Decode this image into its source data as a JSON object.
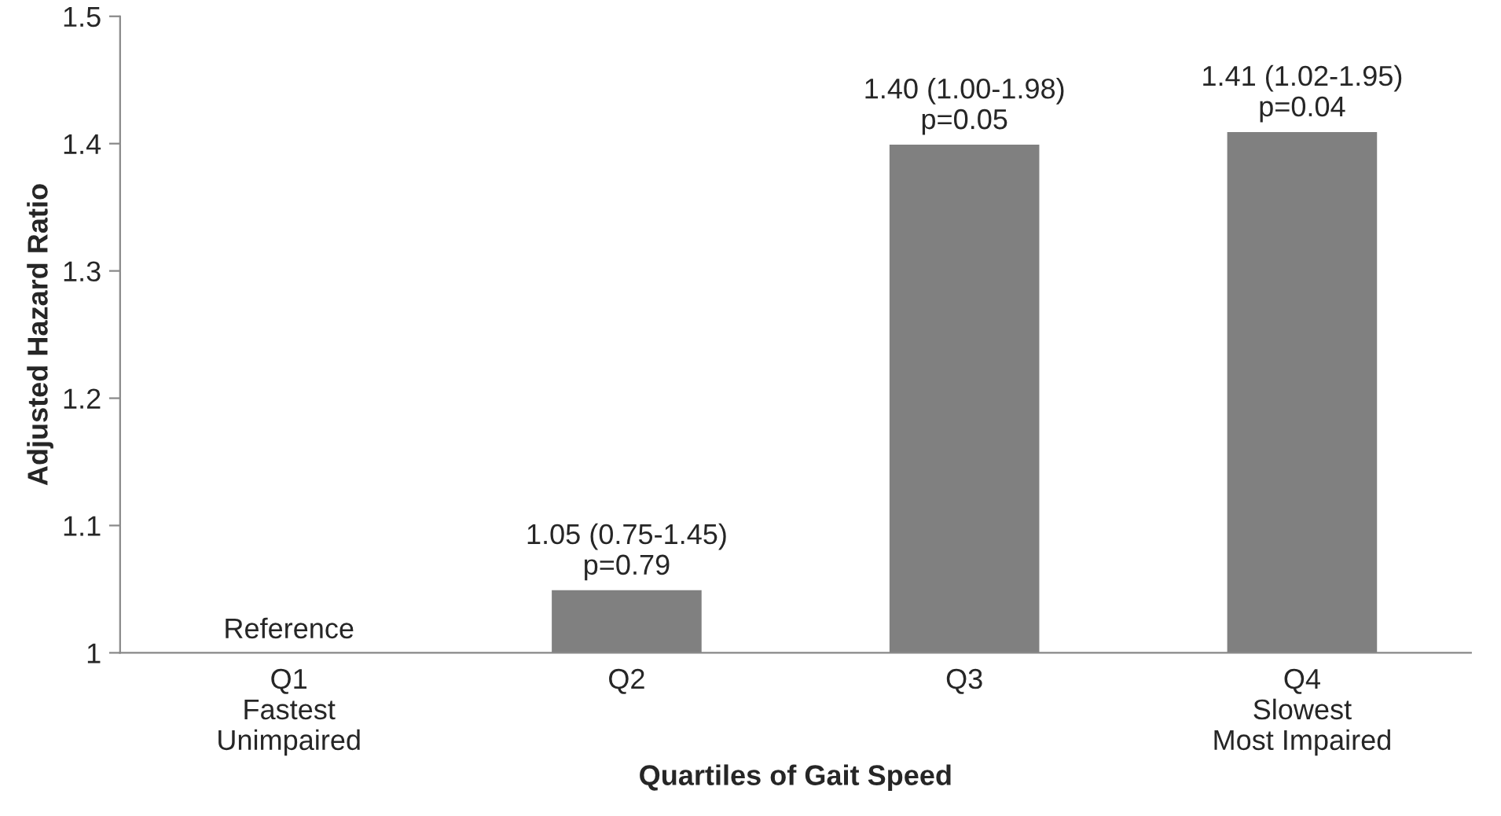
{
  "chart_data": {
    "type": "bar",
    "xlabel": "Quartiles of Gait Speed",
    "ylabel": "Adjusted Hazard Ratio",
    "categories": [
      "Q1\nFastest\nUnimpaired",
      "Q2",
      "Q3",
      "Q4\nSlowest\nMost Impaired"
    ],
    "values": [
      1.0,
      1.05,
      1.4,
      1.41
    ],
    "value_labels": [
      "Reference",
      "1.05 (0.75-1.45)\np=0.79",
      "1.40 (1.00-1.98)\np=0.05",
      "1.41 (1.02-1.95)\np=0.04"
    ],
    "color": "#808080",
    "ylim": [
      1,
      1.5
    ],
    "yticks": [
      1,
      1.1,
      1.2,
      1.3,
      1.4,
      1.5
    ],
    "grid": false,
    "legend": false
  }
}
